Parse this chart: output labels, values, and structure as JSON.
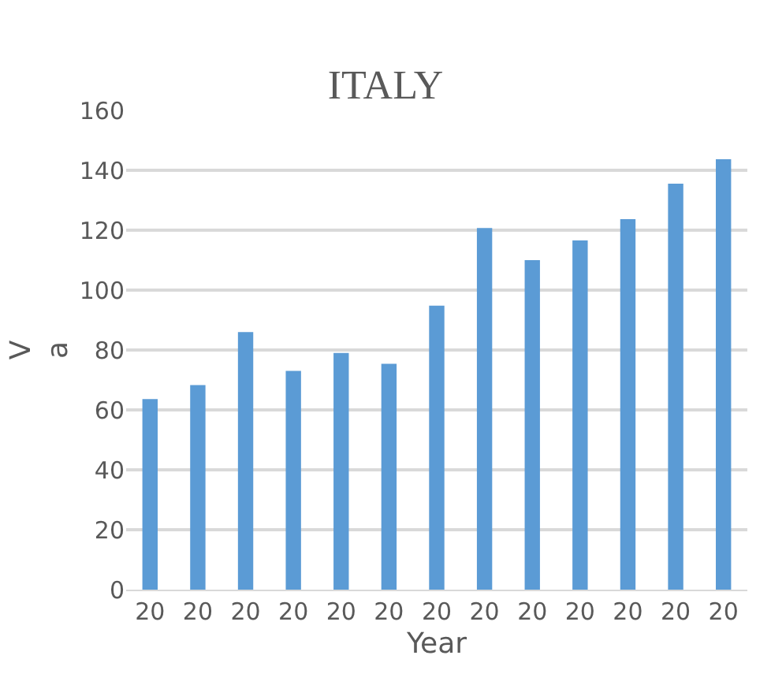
{
  "chart_data": {
    "type": "bar",
    "title": "ITALY",
    "xlabel": "Year",
    "ylabel": "V\na",
    "categories": [
      "20",
      "20",
      "20",
      "20",
      "20",
      "20",
      "20",
      "20",
      "20",
      "20",
      "20",
      "20",
      "20"
    ],
    "values": [
      63.6,
      68.3,
      86,
      73,
      79,
      75.4,
      94.8,
      120.7,
      110,
      116.6,
      123.7,
      135.5,
      143.7
    ],
    "color": "#5b9bd5",
    "ylim": [
      0,
      160
    ],
    "yticks": [
      0,
      20,
      40,
      60,
      80,
      100,
      120,
      140,
      160
    ],
    "grid": "y",
    "legend": false
  }
}
